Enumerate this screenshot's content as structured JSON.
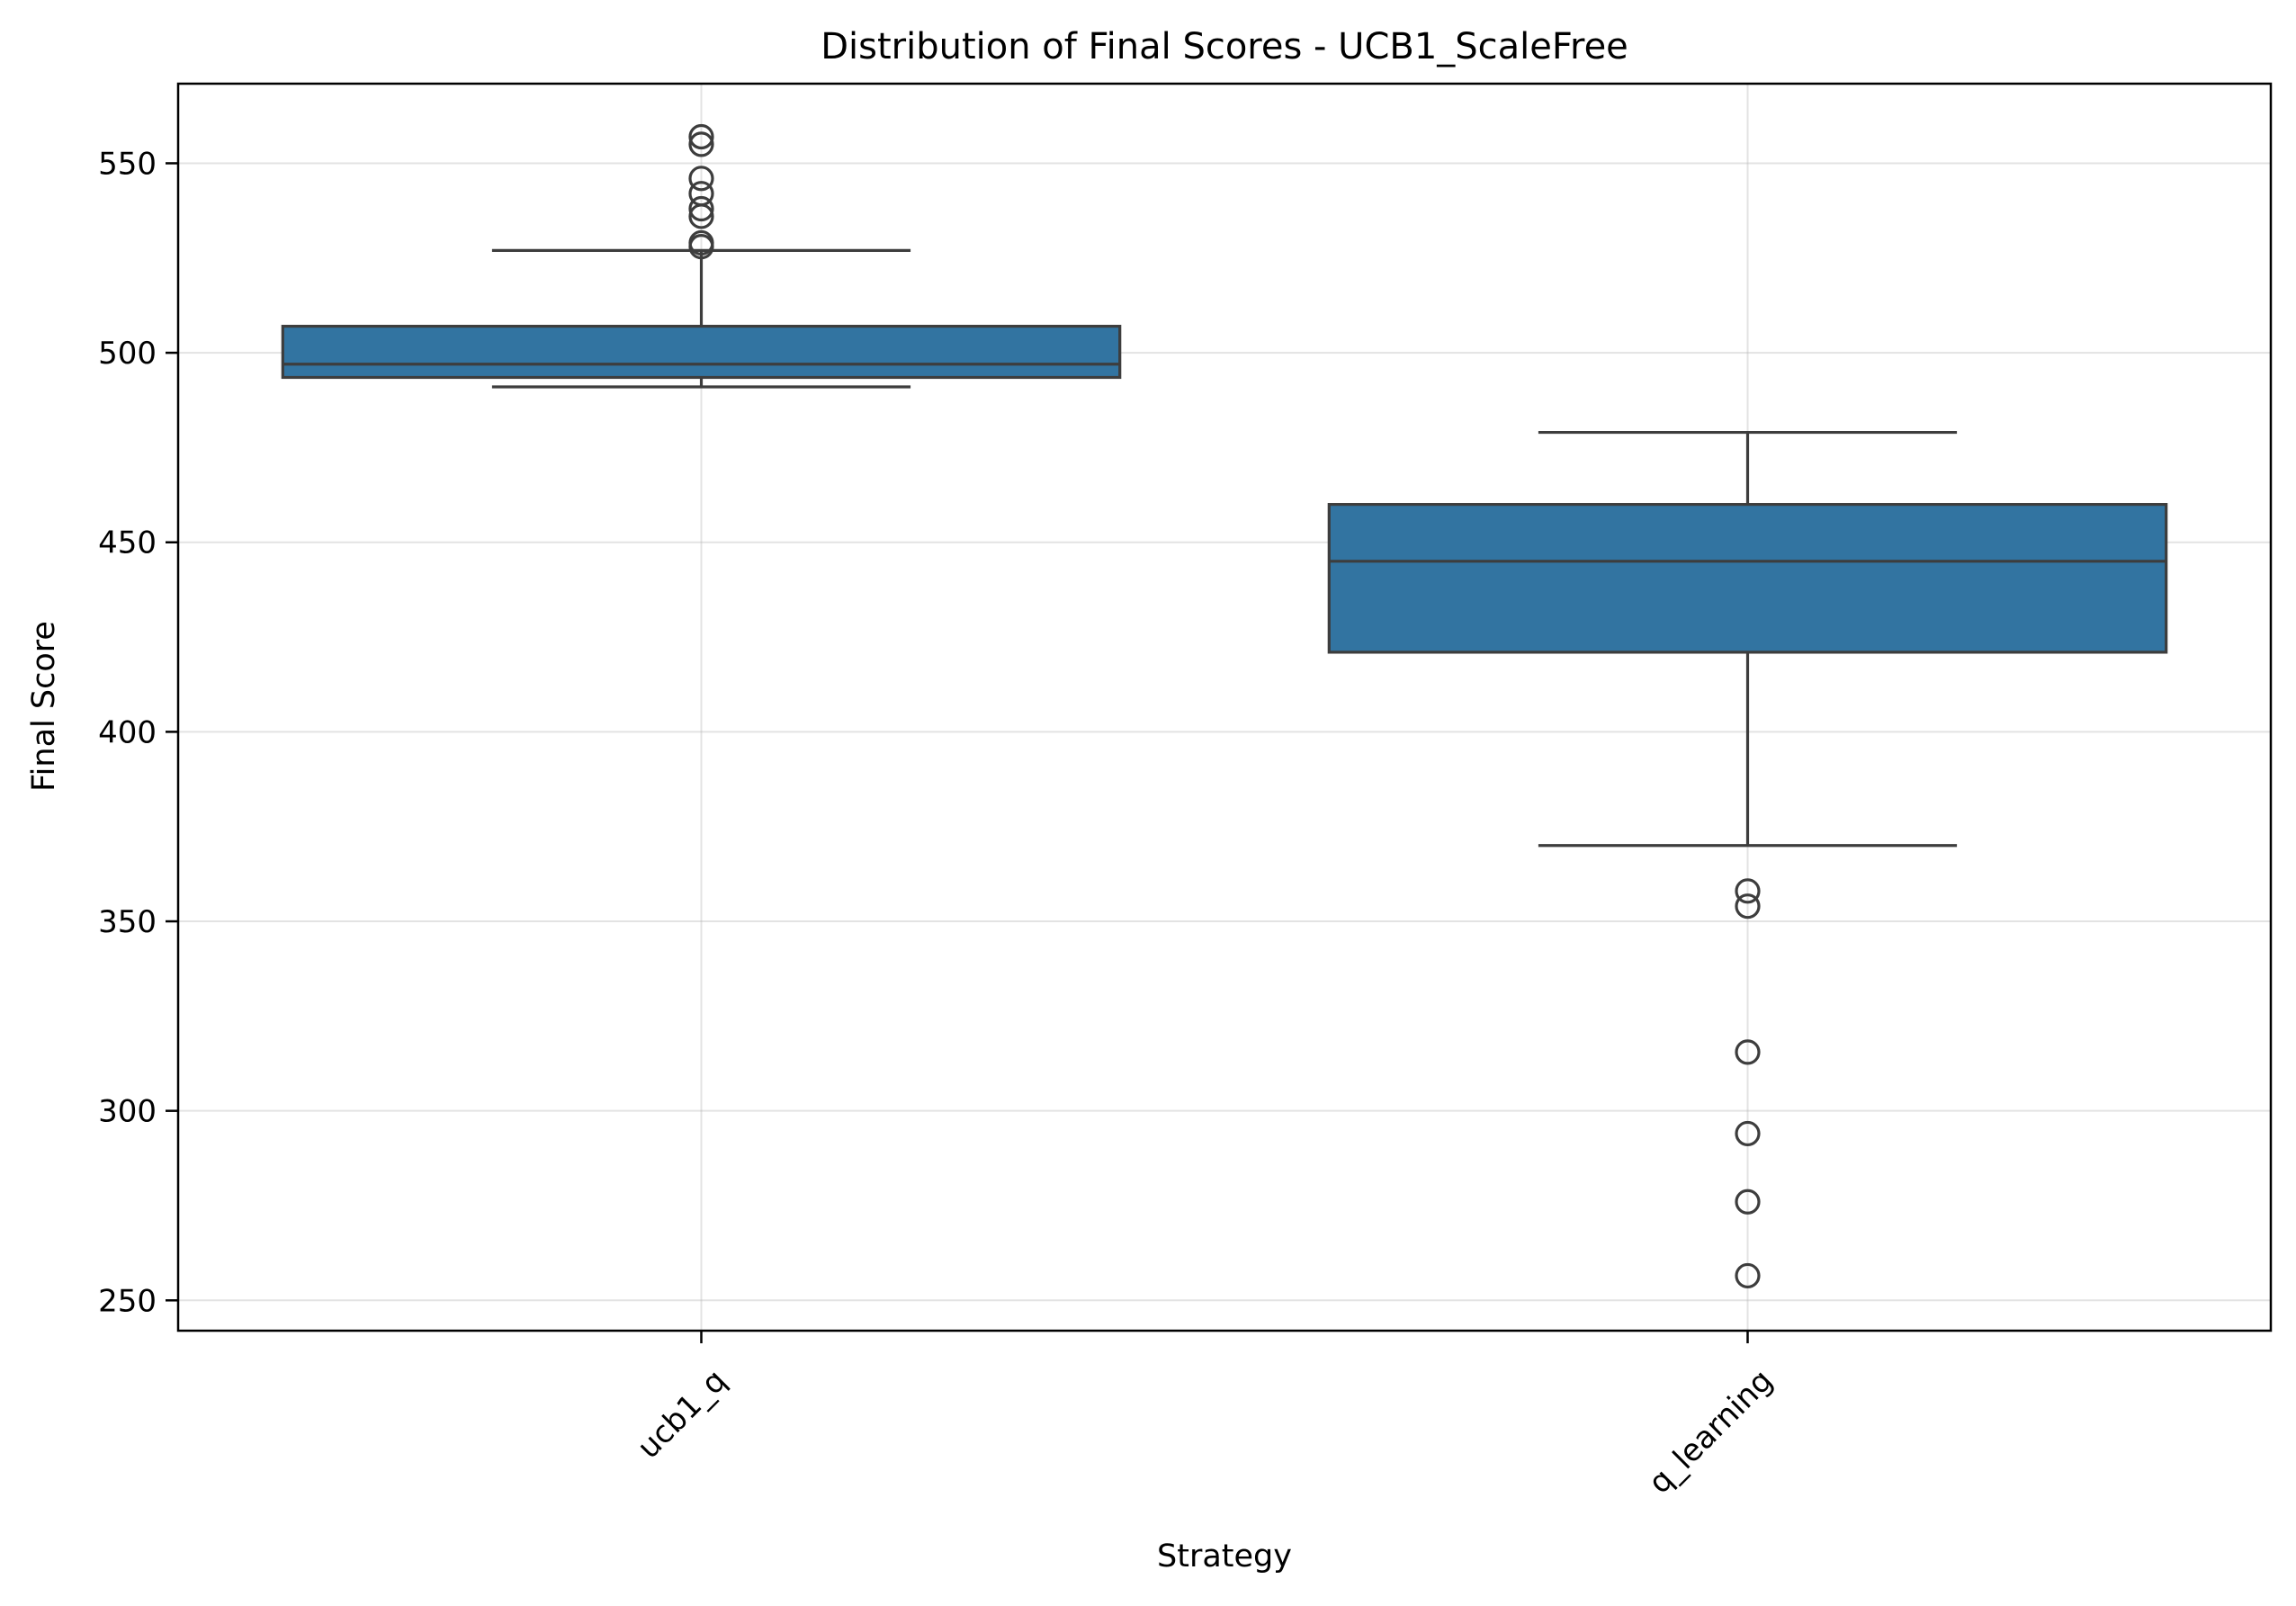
{
  "chart_data": {
    "type": "box",
    "title": "Distribution of Final Scores - UCB1_ScaleFree",
    "xlabel": "Strategy",
    "ylabel": "Final Score",
    "ylim": [
      242,
      571
    ],
    "yticks": [
      250,
      300,
      350,
      400,
      450,
      500,
      550
    ],
    "grid": true,
    "box_color": "#3274a1",
    "categories": [
      "ucb1_q",
      "q_learning"
    ],
    "boxes": [
      {
        "category": "ucb1_q",
        "whisker_low": 491,
        "q1": 493.5,
        "median": 497,
        "q3": 507,
        "whisker_high": 527,
        "fliers": [
          528,
          529,
          536,
          538,
          542,
          546,
          555,
          557
        ]
      },
      {
        "category": "q_learning",
        "whisker_low": 370,
        "q1": 421,
        "median": 445,
        "q3": 460,
        "whisker_high": 479,
        "fliers": [
          256.5,
          276,
          294,
          315.5,
          354,
          358
        ]
      }
    ]
  }
}
